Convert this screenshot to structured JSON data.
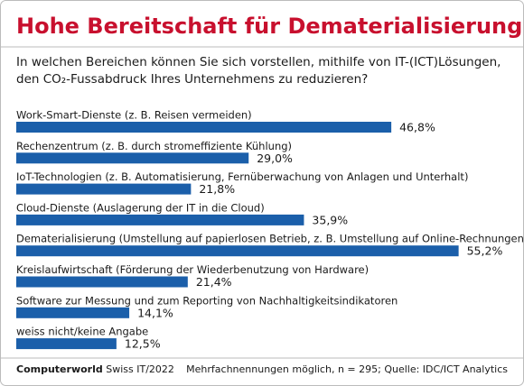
{
  "chart_data": {
    "type": "barh",
    "title": "Hohe Bereitschaft für Dematerialisierung",
    "subtitle": [
      "In welchen Bereichen können Sie sich vorstellen, mithilfe von IT-(ICT)Lösungen,",
      "den CO₂-Fussabdruck Ihres Unternehmens zu reduzieren?"
    ],
    "categories": [
      "Work-Smart-Dienste (z. B. Reisen vermeiden)",
      "Rechenzentrum (z. B. durch stromeffiziente Kühlung)",
      "IoT-Technologien (z. B. Automatisierung, Fernüberwachung von Anlagen und Unterhalt)",
      "Cloud-Dienste (Auslagerung der IT in die Cloud)",
      "Dematerialisierung (Umstellung auf papierlosen Betrieb, z. B. Umstellung auf Online-Rechnungen)",
      "Kreislaufwirtschaft (Förderung der Wiederbenutzung von Hardware)",
      "Software zur Messung und zum Reporting von Nachhaltigkeitsindikatoren",
      "weiss nicht/keine Angabe"
    ],
    "values": [
      46.8,
      29.0,
      21.8,
      35.9,
      55.2,
      21.4,
      14.1,
      12.5
    ],
    "value_labels": [
      "46,8%",
      "29,0%",
      "21,8%",
      "35,9%",
      "55,2%",
      "21,4%",
      "14,1%",
      "12,5%"
    ],
    "color": "#1b5faa",
    "footer": {
      "brand": "Computerworld",
      "issue": "Swiss IT/2022",
      "note": "Mehrfachnennungen möglich, n = 295; Quelle: IDC/ICT Analytics"
    }
  }
}
